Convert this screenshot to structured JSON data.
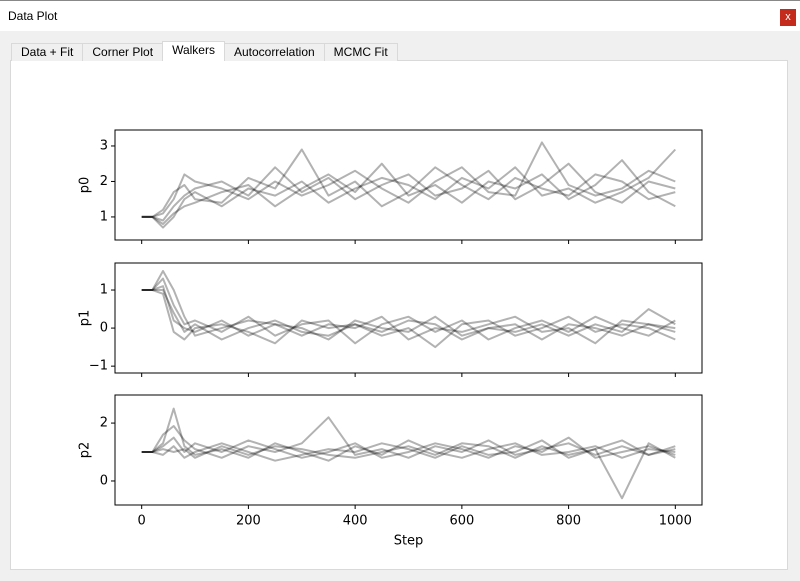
{
  "window": {
    "title": "Data Plot",
    "close": "x"
  },
  "tabs": [
    "Data + Fit",
    "Corner Plot",
    "Walkers",
    "Autocorrelation",
    "MCMC Fit"
  ],
  "active_tab": 2,
  "chart_data": [
    {
      "type": "line",
      "ylabel": "p0",
      "xlim": [
        -50,
        1050
      ],
      "ylim": [
        0.35,
        3.45
      ],
      "yticks": [
        1,
        2,
        3
      ],
      "x": [
        0,
        20,
        40,
        60,
        80,
        100,
        150,
        200,
        250,
        300,
        350,
        400,
        450,
        500,
        550,
        600,
        650,
        700,
        750,
        800,
        850,
        900,
        950,
        1000
      ],
      "series": [
        {
          "color": "rgba(0,0,0,0.3)",
          "values": [
            1,
            1,
            0.9,
            1.3,
            1.6,
            1.8,
            2.0,
            1.6,
            2.4,
            1.7,
            2.1,
            1.5,
            1.9,
            2.2,
            1.6,
            1.8,
            2.3,
            1.5,
            1.9,
            2.5,
            1.7,
            1.4,
            2.0,
            1.8
          ]
        },
        {
          "color": "rgba(0,0,0,0.3)",
          "values": [
            1,
            1,
            1.2,
            1.7,
            1.9,
            1.5,
            1.4,
            2.1,
            1.8,
            2.9,
            1.6,
            2.0,
            1.3,
            1.7,
            2.4,
            1.9,
            1.5,
            2.1,
            1.8,
            1.6,
            2.2,
            2.0,
            1.5,
            1.7
          ]
        },
        {
          "color": "rgba(0,0,0,0.3)",
          "values": [
            1,
            1,
            0.8,
            1.1,
            1.3,
            1.4,
            1.7,
            1.9,
            1.3,
            1.8,
            2.2,
            1.7,
            2.5,
            1.6,
            1.9,
            1.4,
            2.0,
            1.8,
            2.2,
            1.5,
            1.9,
            2.6,
            1.7,
            1.3
          ]
        },
        {
          "color": "rgba(0,0,0,0.3)",
          "values": [
            1,
            1,
            1.1,
            1.5,
            2.2,
            2.0,
            1.8,
            1.5,
            2.0,
            1.6,
            1.9,
            2.3,
            1.8,
            1.4,
            2.0,
            2.4,
            1.7,
            1.6,
            3.1,
            1.9,
            1.6,
            1.8,
            2.3,
            2.0
          ]
        },
        {
          "color": "rgba(0,0,0,0.3)",
          "values": [
            1,
            1,
            0.7,
            1.0,
            1.5,
            1.7,
            1.3,
            1.8,
            1.6,
            2.0,
            1.4,
            1.8,
            2.1,
            1.9,
            1.5,
            2.1,
            1.8,
            2.4,
            1.6,
            1.8,
            1.4,
            1.7,
            2.1,
            2.9
          ]
        }
      ]
    },
    {
      "type": "line",
      "ylabel": "p1",
      "xlim": [
        -50,
        1050
      ],
      "ylim": [
        -1.18,
        1.71
      ],
      "yticks": [
        {
          "value": -1,
          "label": "−1"
        },
        0,
        1
      ],
      "x": [
        0,
        20,
        40,
        60,
        80,
        100,
        150,
        200,
        250,
        300,
        350,
        400,
        450,
        500,
        550,
        600,
        650,
        700,
        750,
        800,
        850,
        900,
        950,
        1000
      ],
      "series": [
        {
          "color": "rgba(0,0,0,0.3)",
          "values": [
            1,
            1,
            1.1,
            0.2,
            0,
            -0.1,
            0.2,
            -0.2,
            0.1,
            0,
            -0.3,
            0.2,
            0,
            -0.1,
            0.3,
            -0.2,
            0,
            0.1,
            -0.3,
            0.1,
            0,
            -0.2,
            0.1,
            0
          ]
        },
        {
          "color": "rgba(0,0,0,0.3)",
          "values": [
            1,
            1,
            1.3,
            0.6,
            0.1,
            0.2,
            -0.1,
            0.3,
            -0.2,
            0.1,
            0.2,
            -0.4,
            0.1,
            0.3,
            -0.1,
            0.2,
            -0.3,
            0,
            0.2,
            -0.1,
            0.3,
            0,
            -0.2,
            0.2
          ]
        },
        {
          "color": "rgba(0,0,0,0.3)",
          "values": [
            1,
            1,
            0.9,
            -0.1,
            -0.3,
            0,
            0.1,
            -0.1,
            -0.4,
            0.2,
            0,
            0.1,
            -0.2,
            0,
            -0.5,
            0.1,
            0.2,
            -0.2,
            0,
            0.3,
            -0.1,
            0.1,
            0,
            -0.3
          ]
        },
        {
          "color": "rgba(0,0,0,0.3)",
          "values": [
            1,
            1,
            1.5,
            1.0,
            0.3,
            -0.2,
            0,
            0.2,
            0.1,
            -0.2,
            0.1,
            0,
            0.3,
            -0.3,
            0,
            -0.1,
            0.1,
            0.3,
            -0.1,
            0,
            -0.4,
            0.2,
            0.1,
            -0.1
          ]
        },
        {
          "color": "rgba(0,0,0,0.3)",
          "values": [
            1,
            1,
            1.0,
            0.4,
            -0.1,
            0.1,
            -0.3,
            0,
            0.2,
            -0.1,
            -0.2,
            0.1,
            -0.1,
            0.2,
            0.1,
            -0.3,
            0,
            -0.1,
            0.1,
            -0.2,
            0.1,
            -0.1,
            0.5,
            0.1
          ]
        }
      ]
    },
    {
      "type": "line",
      "ylabel": "p2",
      "xlabel": "Step",
      "xlim": [
        -50,
        1050
      ],
      "ylim": [
        -0.83,
        2.97
      ],
      "yticks": [
        0,
        2
      ],
      "xticks": [
        0,
        200,
        400,
        600,
        800,
        1000
      ],
      "x": [
        0,
        20,
        40,
        60,
        80,
        100,
        150,
        200,
        250,
        300,
        350,
        400,
        450,
        500,
        550,
        600,
        650,
        700,
        750,
        800,
        850,
        900,
        950,
        1000
      ],
      "series": [
        {
          "color": "rgba(0,0,0,0.3)",
          "values": [
            1,
            1,
            1.3,
            2.5,
            1.2,
            0.9,
            1.1,
            0.8,
            1.3,
            1.0,
            0.7,
            1.2,
            0.9,
            1.4,
            1.0,
            0.8,
            1.1,
            1.3,
            0.9,
            1.0,
            1.2,
            0.8,
            1.1,
            1.0
          ]
        },
        {
          "color": "rgba(0,0,0,0.3)",
          "values": [
            1,
            1,
            1.6,
            1.9,
            1.4,
            1.1,
            0.8,
            1.2,
            1.0,
            1.3,
            2.2,
            0.9,
            1.1,
            0.8,
            1.2,
            1.0,
            1.4,
            0.9,
            1.1,
            1.3,
            0.9,
            1.2,
            0.9,
            1.2
          ]
        },
        {
          "color": "rgba(0,0,0,0.3)",
          "values": [
            1,
            1,
            0.9,
            1.2,
            0.8,
            1.0,
            1.3,
            1.0,
            0.7,
            0.9,
            1.1,
            1.0,
            1.3,
            1.1,
            0.8,
            1.2,
            0.9,
            1.0,
            1.4,
            0.8,
            1.1,
            -0.6,
            1.3,
            0.8
          ]
        },
        {
          "color": "rgba(0,0,0,0.3)",
          "values": [
            1,
            1,
            1.2,
            1.5,
            1.0,
            1.3,
            1.0,
            1.4,
            1.1,
            0.8,
            1.0,
            1.3,
            0.8,
            1.0,
            1.3,
            1.1,
            0.8,
            1.2,
            1.0,
            1.5,
            0.8,
            1.0,
            1.2,
            0.9
          ]
        },
        {
          "color": "rgba(0,0,0,0.3)",
          "values": [
            1,
            1,
            1.1,
            1.0,
            1.1,
            0.8,
            1.2,
            0.9,
            1.2,
            1.1,
            0.9,
            0.8,
            1.0,
            1.2,
            0.9,
            1.3,
            1.2,
            0.8,
            1.2,
            0.9,
            1.1,
            1.4,
            0.9,
            1.1
          ]
        }
      ]
    }
  ]
}
